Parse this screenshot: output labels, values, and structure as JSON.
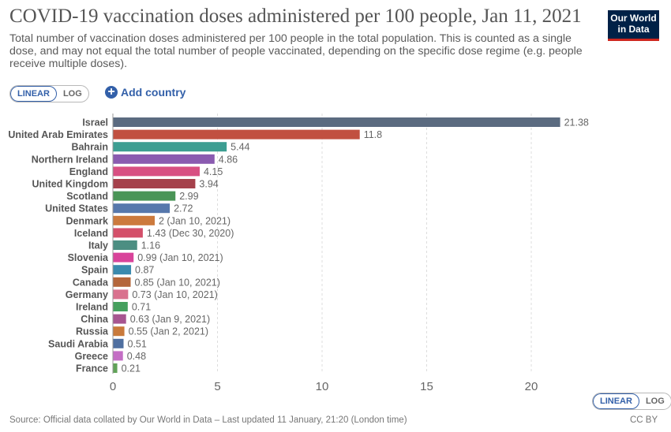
{
  "title": "COVID-19 vaccination doses administered per 100 people, Jan 11, 2021",
  "subtitle": "Total number of vaccination doses administered per 100 people in the total population. This is counted as a single dose, and may not equal the total number of people vaccinated, depending on the specific dose regime (e.g. people receive multiple doses).",
  "logo": {
    "line1": "Our World",
    "line2": "in Data"
  },
  "controls": {
    "top_scale": {
      "linear": "LINEAR",
      "log": "LOG",
      "selected": "LINEAR"
    },
    "add_country": "Add country",
    "bottom_scale": {
      "linear": "LINEAR",
      "log": "LOG",
      "selected": "LINEAR"
    }
  },
  "footer": {
    "source": "Source: Official data collated by Our World in Data – Last updated 11 January, 21:20 (London time)",
    "license": "CC BY"
  },
  "chart_data": {
    "type": "bar",
    "orientation": "horizontal",
    "xlim": [
      0,
      22
    ],
    "xticks": [
      0,
      5,
      10,
      15,
      20
    ],
    "grid": true,
    "categories": [
      "Israel",
      "United Arab Emirates",
      "Bahrain",
      "Northern Ireland",
      "England",
      "United Kingdom",
      "Scotland",
      "United States",
      "Denmark",
      "Iceland",
      "Italy",
      "Slovenia",
      "Spain",
      "Canada",
      "Germany",
      "Ireland",
      "China",
      "Russia",
      "Saudi Arabia",
      "Greece",
      "France"
    ],
    "values": [
      21.38,
      11.8,
      5.44,
      4.86,
      4.15,
      3.94,
      2.99,
      2.72,
      2,
      1.43,
      1.16,
      0.99,
      0.87,
      0.85,
      0.73,
      0.71,
      0.63,
      0.55,
      0.51,
      0.48,
      0.21
    ],
    "value_labels": [
      "21.38",
      "11.8",
      "5.44",
      "4.86",
      "4.15",
      "3.94",
      "2.99",
      "2.72",
      "2 (Jan 10, 2021)",
      "1.43 (Dec 30, 2020)",
      "1.16",
      "0.99 (Jan 10, 2021)",
      "0.87",
      "0.85 (Jan 10, 2021)",
      "0.73 (Jan 10, 2021)",
      "0.71",
      "0.63 (Jan 9, 2021)",
      "0.55 (Jan 2, 2021)",
      "0.51",
      "0.48",
      "0.21"
    ],
    "colors": [
      "#5b6b80",
      "#c15040",
      "#3d9e92",
      "#8a5bb0",
      "#d84f82",
      "#a5414b",
      "#4a9557",
      "#5778ac",
      "#cc7a3d",
      "#d4506a",
      "#4c8e82",
      "#d9439a",
      "#3a8aae",
      "#b4673c",
      "#d9718e",
      "#46a05e",
      "#a75590",
      "#c97a3b",
      "#4f6fa0",
      "#c46ec5",
      "#61a358"
    ]
  }
}
